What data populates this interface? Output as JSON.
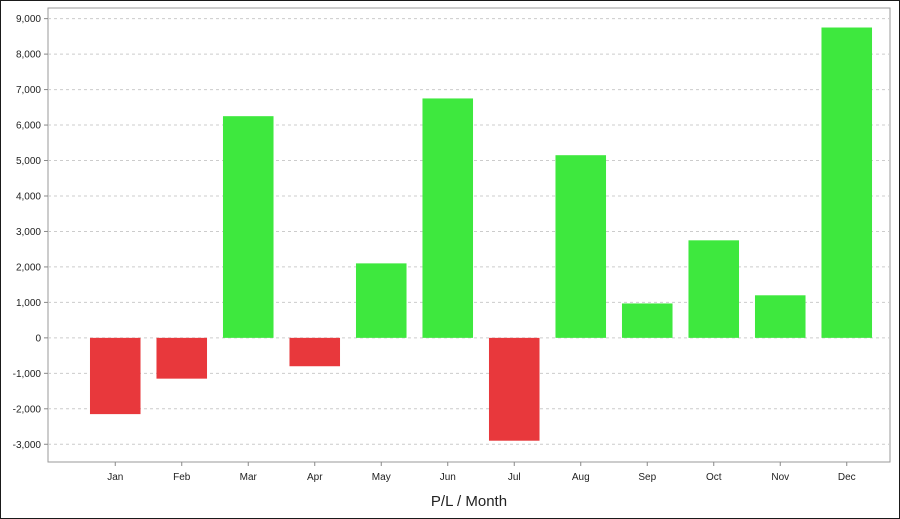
{
  "chart_data": {
    "type": "bar",
    "title": "",
    "xlabel": "P/L / Month",
    "ylabel": "",
    "categories": [
      "Jan",
      "Feb",
      "Mar",
      "Apr",
      "May",
      "Jun",
      "Jul",
      "Aug",
      "Sep",
      "Oct",
      "Nov",
      "Dec"
    ],
    "values": [
      -2150,
      -1150,
      6250,
      -800,
      2100,
      6750,
      -2900,
      5150,
      970,
      2750,
      1200,
      8750
    ],
    "ylim": [
      -3500,
      9300
    ],
    "yticks": [
      -3000,
      -2000,
      -1000,
      0,
      1000,
      2000,
      3000,
      4000,
      5000,
      6000,
      7000,
      8000,
      9000
    ],
    "ytick_labels": [
      "-3,000",
      "-2,000",
      "-1,000",
      "0",
      "1,000",
      "2,000",
      "3,000",
      "4,000",
      "5,000",
      "6,000",
      "7,000",
      "8,000",
      "9,000"
    ],
    "grid": true,
    "legend": "none",
    "colors": {
      "positive": "#3ee83e",
      "negative": "#e8383c",
      "grid": "#cccccc",
      "axis": "#888888"
    }
  }
}
